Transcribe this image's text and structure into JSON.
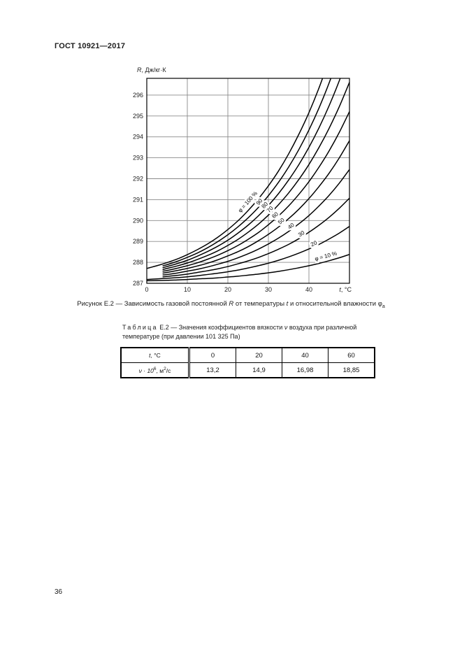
{
  "header": {
    "title": "ГОСТ 10921—2017"
  },
  "footer": {
    "page_number": "36"
  },
  "figure_caption": {
    "a": "Рисунок Е.2 — Зависимость газовой постоянной ",
    "r_var": "R",
    "b": " от температуры ",
    "t_var": "t",
    "c": " и относительной влажности ",
    "phi": "φ",
    "phi_sub": "а"
  },
  "table": {
    "caption_word": "Таблица",
    "caption_line1_a": " Е.2 — Значения коэффициентов вязкости ",
    "caption_nu": "ν",
    "caption_line1_b": " воздуха при различной",
    "caption_line2": "температуре (при давлении 101 325 Па)",
    "header_var": "t",
    "header_rest": ", °С",
    "temperatures": [
      "0",
      "20",
      "40",
      "60"
    ],
    "row_label": {
      "a": "ν · 10",
      "sup1": "6",
      "b": ", м",
      "sup2": "2",
      "c": "/с"
    },
    "values": [
      "13,2",
      "14,9",
      "16,98",
      "18,85"
    ]
  },
  "chart_data": {
    "type": "line",
    "title": "",
    "xlabel": "t, °C",
    "xlabel_var": "t",
    "xlabel_rest": ", °С",
    "ylabel": "R, Дж/кг·К",
    "ylabel_var": "R",
    "ylabel_rest": ", Дж/кг·К",
    "xlim": [
      0,
      50
    ],
    "ylim": [
      287,
      296.8
    ],
    "xticks": [
      "0",
      "10",
      "20",
      "30",
      "40"
    ],
    "xtick_values": [
      0,
      10,
      20,
      30,
      40
    ],
    "yticks": [
      "287",
      "288",
      "289",
      "290",
      "291",
      "292",
      "293",
      "294",
      "295",
      "296"
    ],
    "ytick_values": [
      287,
      288,
      289,
      290,
      291,
      292,
      293,
      294,
      295,
      296
    ],
    "grid": true,
    "grid_color": "#8a8a8a",
    "curve_color": "#000000",
    "legend_position": "labels-on-curves",
    "series": [
      {
        "name": "100%",
        "humidity_percent": 100,
        "label": "φ = 100 %",
        "label_t": 26,
        "label_dy": -6,
        "points": [
          [
            0,
            287.71
          ],
          [
            2.5,
            287.84
          ],
          [
            5,
            287.99
          ],
          [
            7.5,
            288.16
          ],
          [
            10,
            288.37
          ],
          [
            12.5,
            288.61
          ],
          [
            15,
            288.88
          ],
          [
            17.5,
            289.2
          ],
          [
            20,
            289.57
          ],
          [
            22.5,
            289.99
          ],
          [
            25,
            290.48
          ],
          [
            27.5,
            291.03
          ],
          [
            30,
            291.66
          ],
          [
            32.5,
            292.37
          ],
          [
            35,
            293.19
          ],
          [
            37.5,
            294.12
          ],
          [
            40,
            295.16
          ],
          [
            42.5,
            296.35
          ],
          [
            45,
            297.69
          ]
        ]
      },
      {
        "name": "90%",
        "humidity_percent": 90,
        "label": "90",
        "label_t": 28.3,
        "label_dy": -1.5,
        "points": [
          [
            4,
            287.84
          ],
          [
            5,
            287.89
          ],
          [
            7.5,
            288.05
          ],
          [
            10,
            288.24
          ],
          [
            12.5,
            288.45
          ],
          [
            15,
            288.7
          ],
          [
            17.5,
            288.99
          ],
          [
            20,
            289.32
          ],
          [
            22.5,
            289.7
          ],
          [
            25,
            290.13
          ],
          [
            27.5,
            290.62
          ],
          [
            30,
            291.19
          ],
          [
            32.5,
            291.83
          ],
          [
            35,
            292.56
          ],
          [
            37.5,
            293.39
          ],
          [
            40,
            294.33
          ],
          [
            42.5,
            295.39
          ],
          [
            45,
            296.59
          ],
          [
            47.5,
            297.94
          ]
        ]
      },
      {
        "name": "80%",
        "humidity_percent": 80,
        "label": "80",
        "label_t": 29.6,
        "label_dy": -1.5,
        "points": [
          [
            4,
            287.75
          ],
          [
            5,
            287.8
          ],
          [
            7.5,
            287.94
          ],
          [
            10,
            288.1
          ],
          [
            12.5,
            288.3
          ],
          [
            15,
            288.52
          ],
          [
            17.5,
            288.77
          ],
          [
            20,
            289.06
          ],
          [
            22.5,
            289.4
          ],
          [
            25,
            289.78
          ],
          [
            27.5,
            290.22
          ],
          [
            30,
            290.72
          ],
          [
            32.5,
            291.29
          ],
          [
            35,
            291.94
          ],
          [
            37.5,
            292.67
          ],
          [
            40,
            293.5
          ],
          [
            42.5,
            294.44
          ],
          [
            45,
            295.5
          ],
          [
            47.5,
            296.69
          ],
          [
            50,
            298.03
          ]
        ]
      },
      {
        "name": "70%",
        "humidity_percent": 70,
        "label": "70",
        "label_t": 30.9,
        "label_dy": -1.5,
        "points": [
          [
            4,
            287.66
          ],
          [
            5,
            287.71
          ],
          [
            7.5,
            287.83
          ],
          [
            10,
            287.97
          ],
          [
            12.5,
            288.14
          ],
          [
            15,
            288.33
          ],
          [
            17.5,
            288.55
          ],
          [
            20,
            288.81
          ],
          [
            22.5,
            289.1
          ],
          [
            25,
            289.44
          ],
          [
            27.5,
            289.82
          ],
          [
            30,
            290.26
          ],
          [
            32.5,
            290.76
          ],
          [
            35,
            291.32
          ],
          [
            37.5,
            291.96
          ],
          [
            40,
            292.68
          ],
          [
            42.5,
            293.5
          ],
          [
            45,
            294.42
          ],
          [
            47.5,
            295.45
          ],
          [
            50,
            296.61
          ]
        ]
      },
      {
        "name": "60%",
        "humidity_percent": 60,
        "label": "60",
        "label_t": 32.1,
        "label_dy": -1.5,
        "points": [
          [
            4,
            287.58
          ],
          [
            5,
            287.61
          ],
          [
            7.5,
            287.72
          ],
          [
            10,
            287.84
          ],
          [
            12.5,
            287.98
          ],
          [
            15,
            288.15
          ],
          [
            17.5,
            288.34
          ],
          [
            20,
            288.56
          ],
          [
            22.5,
            288.81
          ],
          [
            25,
            289.1
          ],
          [
            27.5,
            289.42
          ],
          [
            30,
            289.8
          ],
          [
            32.5,
            290.22
          ],
          [
            35,
            290.7
          ],
          [
            37.5,
            291.25
          ],
          [
            40,
            291.86
          ],
          [
            42.5,
            292.56
          ],
          [
            45,
            293.34
          ],
          [
            47.5,
            294.22
          ],
          [
            50,
            295.21
          ]
        ]
      },
      {
        "name": "50%",
        "humidity_percent": 50,
        "label": "50",
        "label_t": 33.6,
        "label_dy": -1.5,
        "points": [
          [
            4,
            287.49
          ],
          [
            5,
            287.52
          ],
          [
            7.5,
            287.61
          ],
          [
            10,
            287.71
          ],
          [
            12.5,
            287.83
          ],
          [
            15,
            287.96
          ],
          [
            17.5,
            288.12
          ],
          [
            20,
            288.31
          ],
          [
            22.5,
            288.51
          ],
          [
            25,
            288.75
          ],
          [
            27.5,
            289.03
          ],
          [
            30,
            289.34
          ],
          [
            32.5,
            289.69
          ],
          [
            35,
            290.09
          ],
          [
            37.5,
            290.54
          ],
          [
            40,
            291.05
          ],
          [
            42.5,
            291.63
          ],
          [
            45,
            292.27
          ],
          [
            47.5,
            293.0
          ],
          [
            50,
            293.82
          ]
        ]
      },
      {
        "name": "40%",
        "humidity_percent": 40,
        "label": "40",
        "label_t": 36,
        "label_dy": -1.5,
        "points": [
          [
            4,
            287.4
          ],
          [
            5,
            287.42
          ],
          [
            7.5,
            287.49
          ],
          [
            10,
            287.58
          ],
          [
            12.5,
            287.67
          ],
          [
            15,
            287.78
          ],
          [
            17.5,
            287.91
          ],
          [
            20,
            288.05
          ],
          [
            22.5,
            288.22
          ],
          [
            25,
            288.41
          ],
          [
            27.5,
            288.63
          ],
          [
            30,
            288.88
          ],
          [
            32.5,
            289.16
          ],
          [
            35,
            289.48
          ],
          [
            37.5,
            289.84
          ],
          [
            40,
            290.24
          ],
          [
            42.5,
            290.7
          ],
          [
            45,
            291.21
          ],
          [
            47.5,
            291.79
          ],
          [
            50,
            292.44
          ]
        ]
      },
      {
        "name": "30%",
        "humidity_percent": 30,
        "label": "30",
        "label_t": 38.5,
        "label_dy": -1.5,
        "points": [
          [
            4,
            287.31
          ],
          [
            5,
            287.33
          ],
          [
            7.5,
            287.38
          ],
          [
            10,
            287.44
          ],
          [
            12.5,
            287.52
          ],
          [
            15,
            287.6
          ],
          [
            17.5,
            287.69
          ],
          [
            20,
            287.8
          ],
          [
            22.5,
            287.93
          ],
          [
            25,
            288.07
          ],
          [
            27.5,
            288.23
          ],
          [
            30,
            288.42
          ],
          [
            32.5,
            288.63
          ],
          [
            35,
            288.86
          ],
          [
            37.5,
            289.13
          ],
          [
            40,
            289.44
          ],
          [
            42.5,
            289.78
          ],
          [
            45,
            290.16
          ],
          [
            47.5,
            290.59
          ],
          [
            50,
            291.07
          ]
        ]
      },
      {
        "name": "20%",
        "humidity_percent": 20,
        "label": "20",
        "label_t": 41.5,
        "label_dy": -1.5,
        "points": [
          [
            0,
            287.18
          ],
          [
            2.5,
            287.21
          ],
          [
            5,
            287.24
          ],
          [
            7.5,
            287.27
          ],
          [
            10,
            287.31
          ],
          [
            12.5,
            287.36
          ],
          [
            15,
            287.42
          ],
          [
            17.5,
            287.48
          ],
          [
            20,
            287.55
          ],
          [
            22.5,
            287.63
          ],
          [
            25,
            287.73
          ],
          [
            27.5,
            287.84
          ],
          [
            30,
            287.96
          ],
          [
            32.5,
            288.1
          ],
          [
            35,
            288.26
          ],
          [
            37.5,
            288.44
          ],
          [
            40,
            288.64
          ],
          [
            42.5,
            288.86
          ],
          [
            45,
            289.12
          ],
          [
            47.5,
            289.4
          ],
          [
            50,
            289.72
          ]
        ]
      },
      {
        "name": "10%",
        "humidity_percent": 10,
        "label": "φ = 10 %",
        "label_t": 44.5,
        "label_dy": -5,
        "points": [
          [
            0,
            287.12
          ],
          [
            2.5,
            287.13
          ],
          [
            5,
            287.14
          ],
          [
            7.5,
            287.16
          ],
          [
            10,
            287.18
          ],
          [
            12.5,
            287.21
          ],
          [
            15,
            287.23
          ],
          [
            17.5,
            287.26
          ],
          [
            20,
            287.3
          ],
          [
            22.5,
            287.34
          ],
          [
            25,
            287.39
          ],
          [
            27.5,
            287.44
          ],
          [
            30,
            287.5
          ],
          [
            32.5,
            287.57
          ],
          [
            35,
            287.65
          ],
          [
            37.5,
            287.74
          ],
          [
            40,
            287.84
          ],
          [
            42.5,
            287.95
          ],
          [
            45,
            288.08
          ],
          [
            47.5,
            288.22
          ],
          [
            50,
            288.38
          ]
        ]
      }
    ]
  }
}
